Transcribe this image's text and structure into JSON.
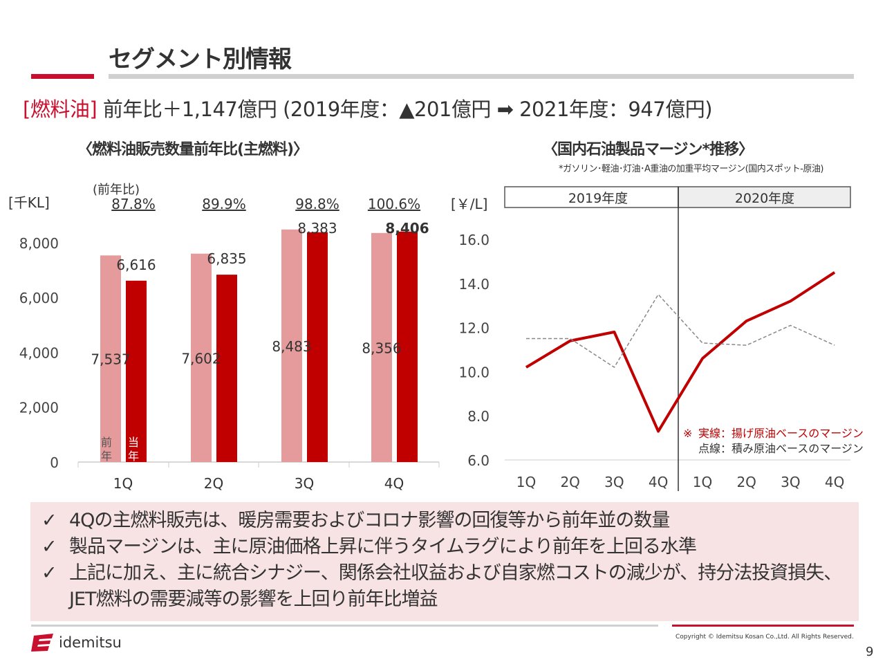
{
  "header": {
    "title": "セグメント別情報"
  },
  "headline": {
    "segment": "[燃料油]",
    "text": " 前年比＋1,147億円 (2019年度：▲201億円 ➡ 2021年度：947億円)"
  },
  "chart_data": [
    {
      "type": "bar",
      "title": "〈燃料油販売数量前年比(主燃料)〉",
      "ylabel": "[千KL]",
      "ratio_label": "(前年比)",
      "categories": [
        "1Q",
        "2Q",
        "3Q",
        "4Q"
      ],
      "ylim": [
        0,
        8000
      ],
      "yticks": [
        "0",
        "2,000",
        "4,000",
        "6,000",
        "8,000"
      ],
      "series": [
        {
          "name": "前年",
          "values": [
            7537,
            7602,
            8483,
            8356
          ],
          "labels": [
            "7,537",
            "7,602",
            "8,483",
            "8,356"
          ],
          "color": "#e59b9b"
        },
        {
          "name": "当年",
          "values": [
            6616,
            6835,
            8383,
            8406
          ],
          "labels": [
            "6,616",
            "6,835",
            "8,383",
            "8,406"
          ],
          "color": "#c00000"
        }
      ],
      "ratios": [
        "87.8%",
        "89.9%",
        "98.8%",
        "100.6%"
      ],
      "legend_prev": "前年",
      "legend_curr": "当年"
    },
    {
      "type": "line",
      "title": "〈国内石油製品マージン*推移〉",
      "note": "*ガソリン･軽油･灯油･A重油の加重平均マージン(国内スポット-原油)",
      "ylabel": "[￥/L]",
      "ylim": [
        6,
        16
      ],
      "yticks": [
        "6.0",
        "8.0",
        "10.0",
        "12.0",
        "14.0",
        "16.0"
      ],
      "periods": [
        "2019年度",
        "2020年度"
      ],
      "categories": [
        "1Q",
        "2Q",
        "3Q",
        "4Q",
        "1Q",
        "2Q",
        "3Q",
        "4Q"
      ],
      "series": [
        {
          "name": "実線：揚げ原油ベースのマージン",
          "values": [
            10.2,
            11.4,
            11.8,
            7.3,
            10.6,
            12.3,
            13.2,
            14.5
          ],
          "color": "#c00000",
          "style": "solid"
        },
        {
          "name": "点線：積み原油ベースのマージン",
          "values": [
            11.5,
            11.5,
            10.2,
            13.5,
            11.3,
            11.2,
            12.1,
            11.2
          ],
          "color": "#888888",
          "style": "dashed"
        }
      ],
      "legend_mark": "※",
      "legend": [
        "実線：揚げ原油ベースのマージン",
        "点線：積み原油ベースのマージン"
      ]
    }
  ],
  "summary": {
    "check": "✓",
    "bullets": [
      "4Qの主燃料販売は、暖房需要およびコロナ影響の回復等から前年並の数量",
      "製品マージンは、主に原油価格上昇に伴うタイムラグにより前年を上回る水準",
      "上記に加え、主に統合シナジー、関係会社収益および自家燃コストの減少が、持分法投資損失、JET燃料の需要減等の影響を上回り前年比増益"
    ]
  },
  "footer": {
    "logo": "idemitsu",
    "copyright": "Copyright © Idemitsu Kosan Co.,Ltd.  All Rights Reserved.",
    "page": "9"
  }
}
